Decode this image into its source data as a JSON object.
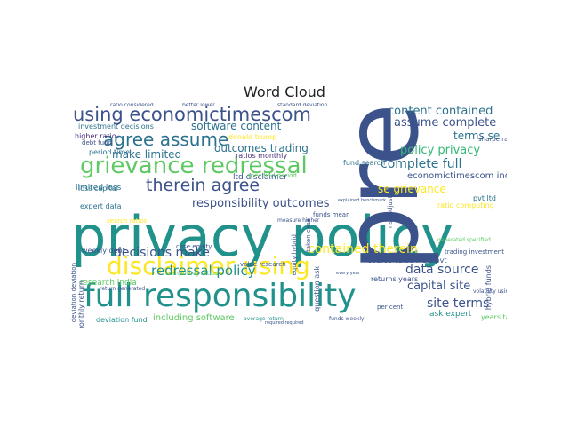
{
  "chart_data": {
    "type": "wordcloud",
    "title": "Word Cloud",
    "palette": [
      "#3b528b",
      "#21918c",
      "#2c728e",
      "#5ec962",
      "#fde725",
      "#440154",
      "#35b779",
      "#472d7b"
    ],
    "words": [
      {
        "text": "privacy policy",
        "weight": 1.0,
        "color": "#21918c"
      },
      {
        "text": "pre",
        "weight": 0.98,
        "color": "#3b528b"
      },
      {
        "text": "full responsibility",
        "weight": 0.85,
        "color": "#21918c"
      },
      {
        "text": "disclaimer using",
        "weight": 0.62,
        "color": "#fde725"
      },
      {
        "text": "grievance redressal",
        "weight": 0.6,
        "color": "#5ec962"
      },
      {
        "text": "using economictimescom",
        "weight": 0.5,
        "color": "#3b528b"
      },
      {
        "text": "agree assume",
        "weight": 0.46,
        "color": "#2c728e"
      },
      {
        "text": "therein agree",
        "weight": 0.44,
        "color": "#3b528b"
      },
      {
        "text": "redressal policy",
        "weight": 0.36,
        "color": "#21918c"
      },
      {
        "text": "decisions make",
        "weight": 0.34,
        "color": "#3b528b"
      },
      {
        "text": "site terms",
        "weight": 0.34,
        "color": "#3b528b"
      },
      {
        "text": "contained therein",
        "weight": 0.33,
        "color": "#fde725"
      },
      {
        "text": "data source",
        "weight": 0.33,
        "color": "#3b528b"
      },
      {
        "text": "complete full",
        "weight": 0.33,
        "color": "#2c728e"
      },
      {
        "text": "capital site",
        "weight": 0.3,
        "color": "#3b528b"
      },
      {
        "text": "responsibility outcomes",
        "weight": 0.3,
        "color": "#3b528b"
      },
      {
        "text": "assume complete",
        "weight": 0.3,
        "color": "#3b528b"
      },
      {
        "text": "content contained",
        "weight": 0.3,
        "color": "#2c728e"
      },
      {
        "text": "policy privacy",
        "weight": 0.29,
        "color": "#35b779"
      },
      {
        "text": "software content",
        "weight": 0.28,
        "color": "#2c728e"
      },
      {
        "text": "se grievance",
        "weight": 0.27,
        "color": "#fde725"
      },
      {
        "text": "make limited",
        "weight": 0.26,
        "color": "#2c728e"
      },
      {
        "text": "outcomes trading",
        "weight": 0.26,
        "color": "#2c728e"
      },
      {
        "text": "terms se",
        "weight": 0.26,
        "color": "#2c728e"
      },
      {
        "text": "economictimescom including",
        "weight": 0.24,
        "color": "#3b528b"
      },
      {
        "text": "including software",
        "weight": 0.22,
        "color": "#5ec962"
      },
      {
        "text": "ltd disclaimer",
        "weight": 0.2,
        "color": "#3b528b"
      },
      {
        "text": "research india",
        "weight": 0.2,
        "color": "#5ec962"
      },
      {
        "text": "ask expert",
        "weight": 0.2,
        "color": "#21918c"
      },
      {
        "text": "limited loss",
        "weight": 0.19,
        "color": "#2c728e"
      },
      {
        "text": "investment decisions",
        "weight": 0.18,
        "color": "#2c728e"
      },
      {
        "text": "source value india pvt",
        "weight": 0.18,
        "color": "#3b528b"
      },
      {
        "text": "returns years",
        "weight": 0.18,
        "color": "#3b528b"
      },
      {
        "text": "years taken",
        "weight": 0.18,
        "color": "#5ec962"
      },
      {
        "text": "loss capital",
        "weight": 0.18,
        "color": "#2c728e"
      },
      {
        "text": "hybrid funds",
        "weight": 0.17,
        "color": "#3b528b"
      },
      {
        "text": "fund search",
        "weight": 0.17,
        "color": "#2c728e"
      },
      {
        "text": "question ask",
        "weight": 0.16,
        "color": "#3b528b"
      },
      {
        "text": "ratios monthly",
        "weight": 0.16,
        "color": "#472d7b"
      },
      {
        "text": "donald trump",
        "weight": 0.16,
        "color": "#fde725"
      },
      {
        "text": "higher ratio",
        "weight": 0.16,
        "color": "#472d7b"
      },
      {
        "text": "period time",
        "weight": 0.16,
        "color": "#2c728e"
      },
      {
        "text": "expert data",
        "weight": 0.16,
        "color": "#2c728e"
      },
      {
        "text": "deviation fund",
        "weight": 0.16,
        "color": "#21918c"
      },
      {
        "text": "monthly return",
        "weight": 0.16,
        "color": "#3b528b"
      },
      {
        "text": "ratio computing",
        "weight": 0.16,
        "color": "#fde725"
      },
      {
        "text": "pvt ltd",
        "weight": 0.16,
        "color": "#2c728e"
      },
      {
        "text": "computing ratios",
        "weight": 0.15,
        "color": "#5ec962"
      },
      {
        "text": "weekly debt",
        "weight": 0.15,
        "color": "#3b528b"
      },
      {
        "text": "case equity",
        "weight": 0.14,
        "color": "#3b528b"
      },
      {
        "text": "value research",
        "weight": 0.14,
        "color": "#3b528b"
      },
      {
        "text": "taken case",
        "weight": 0.14,
        "color": "#3b528b"
      },
      {
        "text": "equity hybrid",
        "weight": 0.14,
        "color": "#3b528b"
      },
      {
        "text": "funds mean",
        "weight": 0.14,
        "color": "#3b528b"
      },
      {
        "text": "debt fund",
        "weight": 0.14,
        "color": "#3b528b"
      },
      {
        "text": "average return",
        "weight": 0.13,
        "color": "#21918c"
      },
      {
        "text": "funds weekly",
        "weight": 0.13,
        "color": "#3b528b"
      },
      {
        "text": "return generated",
        "weight": 0.13,
        "color": "#3b528b"
      },
      {
        "text": "deviation deviation",
        "weight": 0.13,
        "color": "#3b528b"
      },
      {
        "text": "generated specified",
        "weight": 0.13,
        "color": "#5ec962"
      },
      {
        "text": "specified period",
        "weight": 0.13,
        "color": "#5ec962"
      },
      {
        "text": "risk adjusted",
        "weight": 0.12,
        "color": "#3b528b"
      },
      {
        "text": "sharpe ratio",
        "weight": 0.12,
        "color": "#3b528b"
      },
      {
        "text": "trading investment",
        "weight": 0.12,
        "color": "#3b528b"
      },
      {
        "text": "volatility using",
        "weight": 0.12,
        "color": "#3b528b"
      },
      {
        "text": "per cent",
        "weight": 0.12,
        "color": "#3b528b"
      },
      {
        "text": "search ratios",
        "weight": 0.12,
        "color": "#fde725"
      },
      {
        "text": "standard deviation",
        "weight": 0.11,
        "color": "#3b528b"
      },
      {
        "text": "ratio considered",
        "weight": 0.11,
        "color": "#3b528b"
      },
      {
        "text": "better lower",
        "weight": 0.11,
        "color": "#3b528b"
      },
      {
        "text": "measure higher",
        "weight": 0.11,
        "color": "#3b528b"
      },
      {
        "text": "explained benchmark",
        "weight": 0.1,
        "color": "#3b528b"
      },
      {
        "text": "every year",
        "weight": 0.1,
        "color": "#3b528b"
      },
      {
        "text": "required required",
        "weight": 0.1,
        "color": "#3b528b"
      }
    ]
  }
}
